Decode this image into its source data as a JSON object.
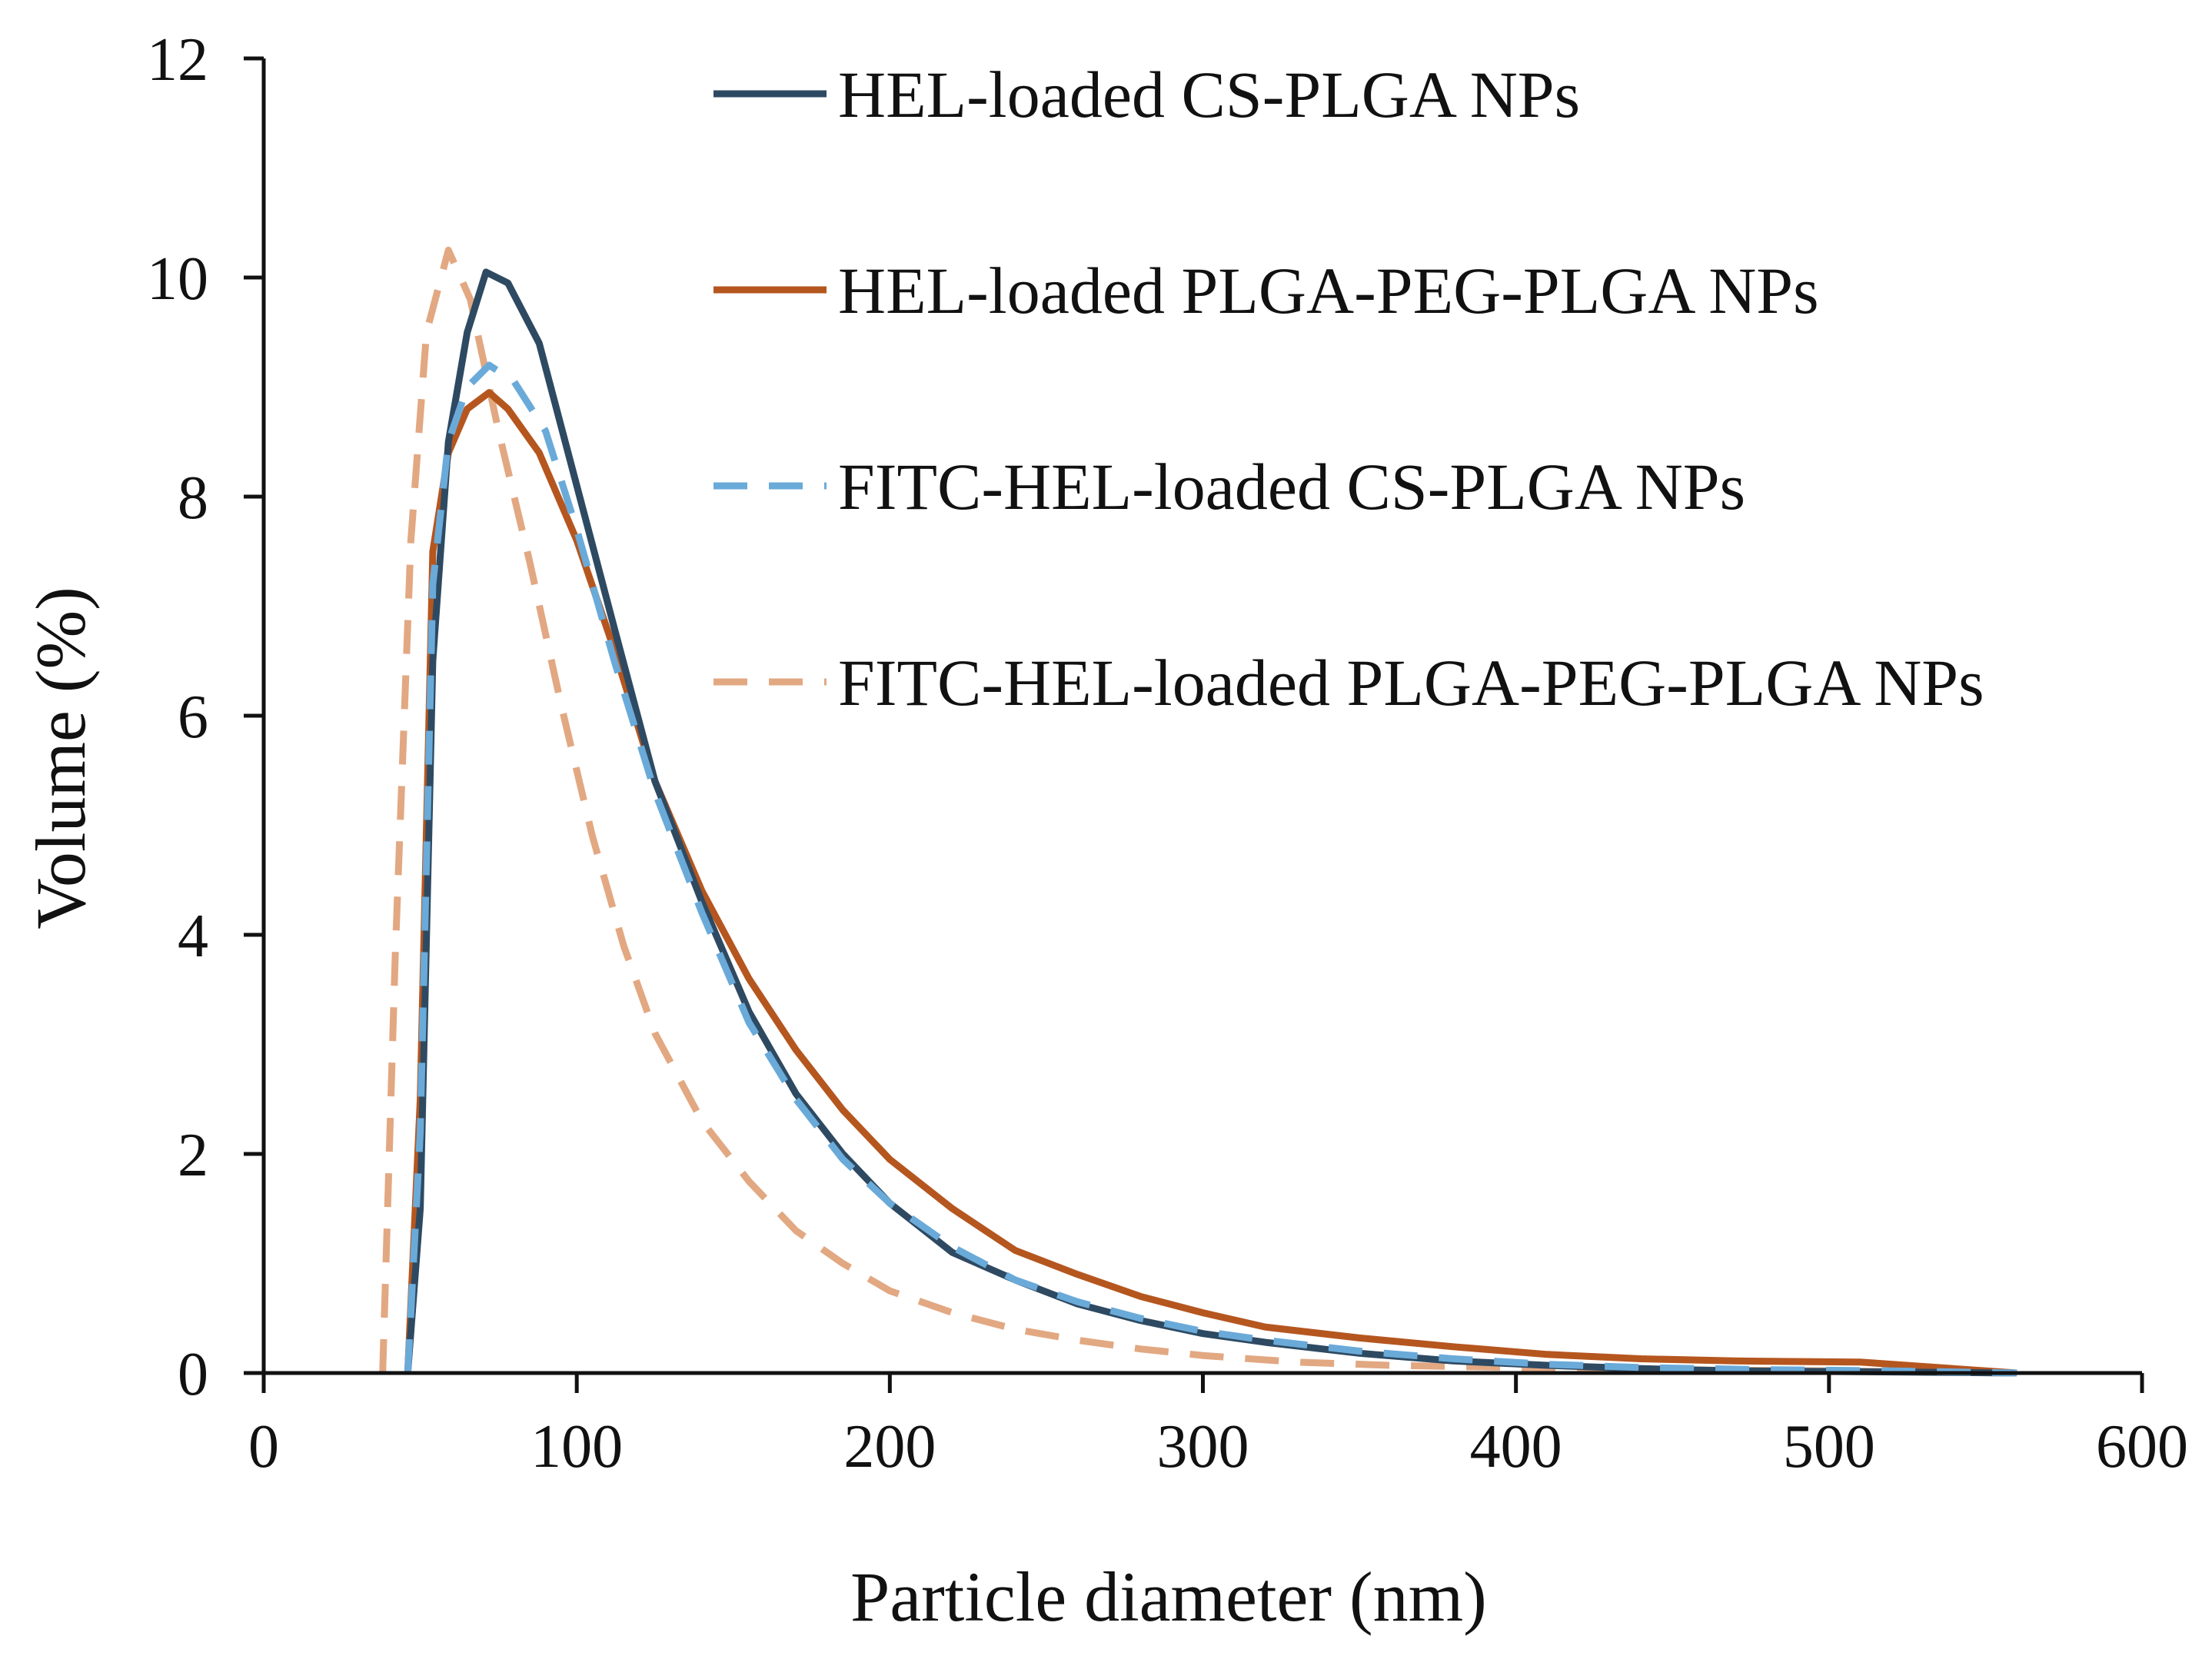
{
  "chart_data": {
    "type": "line",
    "title": "",
    "xlabel": "Particle diameter (nm)",
    "ylabel": "Volume (%)",
    "xlim": [
      0,
      600
    ],
    "ylim": [
      0,
      12
    ],
    "xticks": [
      0,
      100,
      200,
      300,
      400,
      500,
      600
    ],
    "xtick_labels": [
      "0",
      "100",
      "200",
      "300",
      "400",
      "500",
      "600"
    ],
    "yticks": [
      0,
      2,
      4,
      6,
      8,
      10,
      12
    ],
    "ytick_labels": [
      "0",
      "2",
      "4",
      "6",
      "8",
      "10",
      "12"
    ],
    "grid": false,
    "legend_position": "top-right",
    "series": [
      {
        "name": "HEL-loaded CS-PLGA NPs",
        "color": "#2e4a62",
        "dash": "solid",
        "points": [
          [
            46,
            0
          ],
          [
            50,
            1.5
          ],
          [
            54,
            6.5
          ],
          [
            59,
            8.5
          ],
          [
            65,
            9.5
          ],
          [
            71,
            10.05
          ],
          [
            78,
            9.95
          ],
          [
            88,
            9.4
          ],
          [
            100,
            8.1
          ],
          [
            112,
            6.8
          ],
          [
            125,
            5.4
          ],
          [
            140,
            4.3
          ],
          [
            155,
            3.3
          ],
          [
            170,
            2.55
          ],
          [
            185,
            2.0
          ],
          [
            200,
            1.55
          ],
          [
            220,
            1.1
          ],
          [
            240,
            0.85
          ],
          [
            260,
            0.63
          ],
          [
            280,
            0.48
          ],
          [
            300,
            0.36
          ],
          [
            320,
            0.28
          ],
          [
            350,
            0.18
          ],
          [
            380,
            0.11
          ],
          [
            410,
            0.07
          ],
          [
            440,
            0.04
          ],
          [
            470,
            0.02
          ],
          [
            520,
            0.01
          ],
          [
            560,
            0
          ]
        ]
      },
      {
        "name": "HEL-loaded PLGA-PEG-PLGA NPs",
        "color": "#b5561f",
        "dash": "solid",
        "points": [
          [
            46,
            0
          ],
          [
            50,
            2.5
          ],
          [
            54,
            7.5
          ],
          [
            59,
            8.4
          ],
          [
            65,
            8.8
          ],
          [
            72,
            8.95
          ],
          [
            78,
            8.8
          ],
          [
            88,
            8.4
          ],
          [
            100,
            7.6
          ],
          [
            112,
            6.6
          ],
          [
            125,
            5.4
          ],
          [
            140,
            4.4
          ],
          [
            155,
            3.6
          ],
          [
            170,
            2.95
          ],
          [
            185,
            2.4
          ],
          [
            200,
            1.95
          ],
          [
            220,
            1.5
          ],
          [
            240,
            1.12
          ],
          [
            260,
            0.9
          ],
          [
            280,
            0.7
          ],
          [
            300,
            0.55
          ],
          [
            320,
            0.42
          ],
          [
            350,
            0.32
          ],
          [
            380,
            0.24
          ],
          [
            410,
            0.17
          ],
          [
            440,
            0.13
          ],
          [
            470,
            0.11
          ],
          [
            510,
            0.1
          ],
          [
            530,
            0.06
          ],
          [
            560,
            0
          ]
        ]
      },
      {
        "name": "FITC-HEL-loaded CS-PLGA NPs",
        "color": "#6aaad9",
        "dash": "dashed",
        "points": [
          [
            46,
            0
          ],
          [
            50,
            2.2
          ],
          [
            54,
            7.2
          ],
          [
            59,
            8.5
          ],
          [
            65,
            9.0
          ],
          [
            72,
            9.2
          ],
          [
            80,
            9.05
          ],
          [
            90,
            8.6
          ],
          [
            100,
            7.7
          ],
          [
            112,
            6.5
          ],
          [
            125,
            5.3
          ],
          [
            140,
            4.2
          ],
          [
            155,
            3.2
          ],
          [
            170,
            2.5
          ],
          [
            185,
            1.95
          ],
          [
            200,
            1.55
          ],
          [
            220,
            1.15
          ],
          [
            240,
            0.85
          ],
          [
            260,
            0.65
          ],
          [
            280,
            0.5
          ],
          [
            300,
            0.38
          ],
          [
            320,
            0.3
          ],
          [
            350,
            0.2
          ],
          [
            380,
            0.13
          ],
          [
            410,
            0.08
          ],
          [
            440,
            0.05
          ],
          [
            480,
            0.03
          ],
          [
            520,
            0.02
          ],
          [
            560,
            0
          ]
        ]
      },
      {
        "name": "FITC-HEL-loaded PLGA-PEG-PLGA NPs",
        "color": "#e2a882",
        "dash": "dashed",
        "points": [
          [
            38,
            0
          ],
          [
            42,
            3.8
          ],
          [
            47,
            7.6
          ],
          [
            52,
            9.5
          ],
          [
            59,
            10.25
          ],
          [
            66,
            9.8
          ],
          [
            75,
            8.6
          ],
          [
            85,
            7.4
          ],
          [
            95,
            6.1
          ],
          [
            105,
            4.9
          ],
          [
            115,
            3.9
          ],
          [
            125,
            3.1
          ],
          [
            140,
            2.3
          ],
          [
            155,
            1.75
          ],
          [
            170,
            1.3
          ],
          [
            185,
            1.0
          ],
          [
            200,
            0.75
          ],
          [
            220,
            0.55
          ],
          [
            240,
            0.4
          ],
          [
            260,
            0.3
          ],
          [
            280,
            0.22
          ],
          [
            300,
            0.16
          ],
          [
            330,
            0.1
          ],
          [
            360,
            0.07
          ],
          [
            400,
            0.05
          ],
          [
            440,
            0.03
          ],
          [
            500,
            0.02
          ],
          [
            560,
            0
          ]
        ]
      }
    ]
  }
}
